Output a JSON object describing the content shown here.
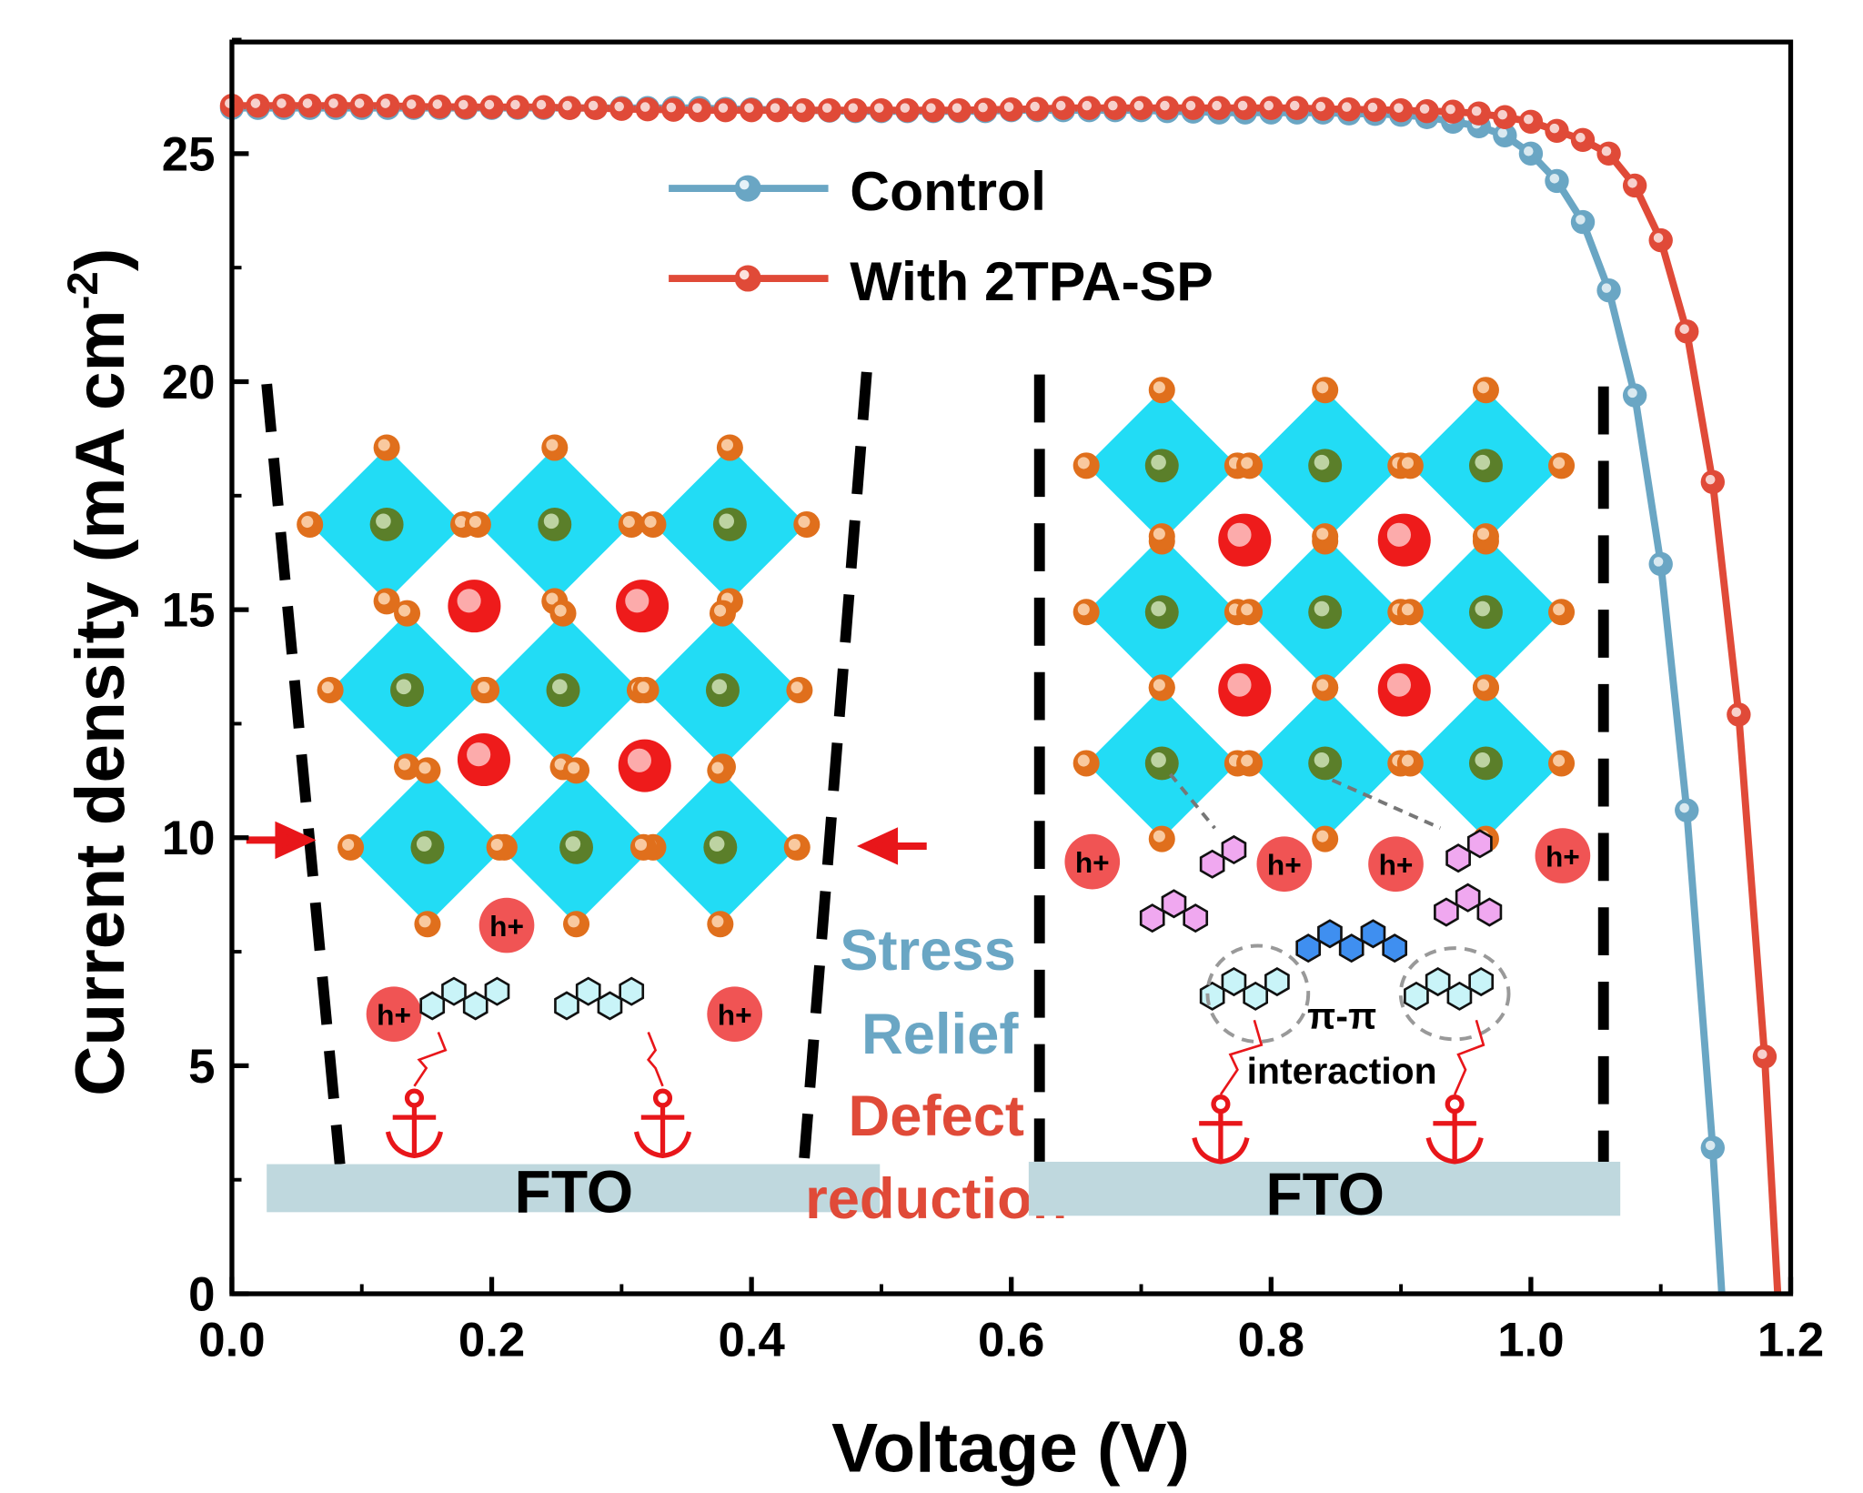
{
  "chart_data": {
    "type": "line",
    "xlabel": "Voltage (V)",
    "ylabel": "Current  density (mA cm",
    "ylabel_sup": "-2",
    "ylabel_end": ")",
    "xlim": [
      0,
      1.2
    ],
    "ylim": [
      0,
      27.5
    ],
    "xticks": [
      "0.0",
      "0.2",
      "0.4",
      "0.6",
      "0.8",
      "1.0",
      "1.2"
    ],
    "yticks": [
      "0",
      "5",
      "10",
      "15",
      "20",
      "25"
    ],
    "grid": false,
    "legend_position": "top-center",
    "series": [
      {
        "name": "Control",
        "color": "#6aa6c4",
        "x": [
          0,
          0.02,
          0.04,
          0.06,
          0.08,
          0.1,
          0.12,
          0.14,
          0.16,
          0.18,
          0.2,
          0.22,
          0.24,
          0.26,
          0.28,
          0.3,
          0.32,
          0.34,
          0.36,
          0.38,
          0.4,
          0.42,
          0.44,
          0.46,
          0.48,
          0.5,
          0.52,
          0.54,
          0.56,
          0.58,
          0.6,
          0.62,
          0.64,
          0.66,
          0.68,
          0.7,
          0.72,
          0.74,
          0.76,
          0.78,
          0.8,
          0.82,
          0.84,
          0.86,
          0.88,
          0.9,
          0.92,
          0.94,
          0.96,
          0.98,
          1.0,
          1.02,
          1.04,
          1.06,
          1.08,
          1.1,
          1.12,
          1.14
        ],
        "y": [
          26.0,
          26.0,
          26.0,
          26.0,
          26.0,
          26.0,
          26.0,
          26.0,
          26.0,
          26.0,
          26.0,
          26.0,
          26.0,
          26.0,
          26.0,
          26.0,
          26.0,
          26.0,
          26.0,
          25.98,
          25.97,
          25.96,
          25.95,
          25.94,
          25.93,
          25.93,
          25.93,
          25.93,
          25.93,
          25.93,
          25.95,
          25.95,
          25.95,
          25.95,
          25.95,
          25.95,
          25.93,
          25.92,
          25.9,
          25.9,
          25.9,
          25.9,
          25.9,
          25.88,
          25.87,
          25.85,
          25.8,
          25.7,
          25.6,
          25.4,
          25.0,
          24.4,
          23.5,
          22.0,
          19.7,
          16.0,
          10.6,
          3.2
        ],
        "voc": 1.147
      },
      {
        "name": "With 2TPA-SP",
        "color": "#e04a38",
        "x": [
          0,
          0.02,
          0.04,
          0.06,
          0.08,
          0.1,
          0.12,
          0.14,
          0.16,
          0.18,
          0.2,
          0.22,
          0.24,
          0.26,
          0.28,
          0.3,
          0.32,
          0.34,
          0.36,
          0.38,
          0.4,
          0.42,
          0.44,
          0.46,
          0.48,
          0.5,
          0.52,
          0.54,
          0.56,
          0.58,
          0.6,
          0.62,
          0.64,
          0.66,
          0.68,
          0.7,
          0.72,
          0.74,
          0.76,
          0.78,
          0.8,
          0.82,
          0.84,
          0.86,
          0.88,
          0.9,
          0.92,
          0.94,
          0.96,
          0.98,
          1.0,
          1.02,
          1.04,
          1.06,
          1.08,
          1.1,
          1.12,
          1.14,
          1.16,
          1.18
        ],
        "y": [
          26.05,
          26.05,
          26.05,
          26.05,
          26.05,
          26.05,
          26.05,
          26.03,
          26.03,
          26.02,
          26.02,
          26.02,
          26.02,
          26.0,
          26.0,
          25.98,
          25.97,
          25.96,
          25.95,
          25.95,
          25.95,
          25.95,
          25.95,
          25.95,
          25.95,
          25.95,
          25.95,
          25.95,
          25.95,
          25.96,
          25.97,
          25.98,
          26.0,
          26.0,
          26.0,
          26.0,
          26.0,
          26.0,
          26.0,
          26.0,
          26.0,
          26.0,
          25.98,
          25.97,
          25.96,
          25.95,
          25.93,
          25.92,
          25.88,
          25.8,
          25.7,
          25.5,
          25.3,
          25.0,
          24.3,
          23.1,
          21.1,
          17.8,
          12.7,
          5.2
        ],
        "voc": 1.19
      }
    ]
  },
  "inset": {
    "fto_left": "FTO",
    "fto_right": "FTO",
    "hole_label": "h+",
    "stress": "Stress",
    "relief": "Relief",
    "defect": "Defect",
    "reduction": "reduction",
    "pi_pi": "π-π",
    "interaction": "interaction",
    "stress_color": "#6aa6c4",
    "defect_color": "#e04a38"
  }
}
